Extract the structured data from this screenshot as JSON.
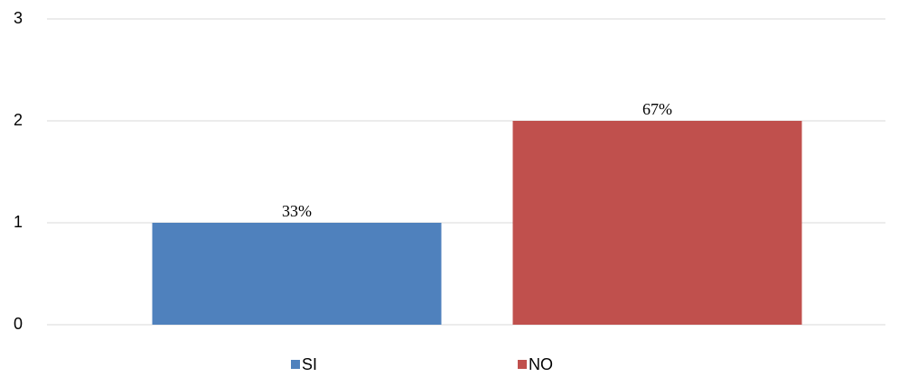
{
  "chart_data": {
    "type": "bar",
    "categories": [
      null
    ],
    "series": [
      {
        "name": "SI",
        "color": "#4f81bd",
        "values": [
          1
        ]
      },
      {
        "name": "NO",
        "color": "#c0504d",
        "values": [
          2
        ]
      }
    ],
    "annotations": [
      "33%",
      "67%"
    ],
    "ylim": [
      0,
      3
    ],
    "yticks": [
      0,
      1,
      2,
      3
    ],
    "grid": true,
    "legend": "bottom"
  }
}
